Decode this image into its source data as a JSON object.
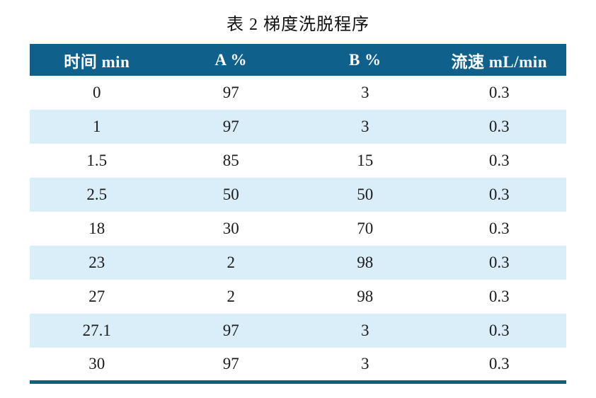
{
  "title": "表 2 梯度洗脱程序",
  "table": {
    "headers": [
      "时间 min",
      "A %",
      "B %",
      "流速 mL/min"
    ],
    "rows": [
      [
        "0",
        "97",
        "3",
        "0.3"
      ],
      [
        "1",
        "97",
        "3",
        "0.3"
      ],
      [
        "1.5",
        "85",
        "15",
        "0.3"
      ],
      [
        "2.5",
        "50",
        "50",
        "0.3"
      ],
      [
        "18",
        "30",
        "70",
        "0.3"
      ],
      [
        "23",
        "2",
        "98",
        "0.3"
      ],
      [
        "27",
        "2",
        "98",
        "0.3"
      ],
      [
        "27.1",
        "97",
        "3",
        "0.3"
      ],
      [
        "30",
        "97",
        "3",
        "0.3"
      ]
    ]
  },
  "colors": {
    "header_bg": "#10608c",
    "header_text": "#ffffff",
    "alt_row_bg": "#d9eef9",
    "row_bg": "#ffffff",
    "bottom_rule": "#0f6183"
  }
}
